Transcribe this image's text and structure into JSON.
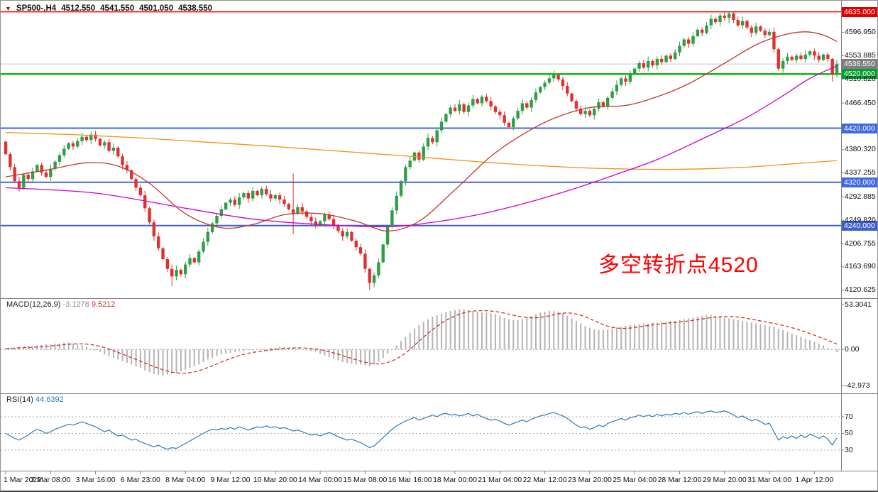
{
  "header": {
    "symbol": "SP500-,H4",
    "open": "4512.550",
    "high": "4541.550",
    "low": "4501.050",
    "close": "4538.550"
  },
  "annotation": {
    "text": "多空转折点4520",
    "color": "#FF0000"
  },
  "indicators": {
    "macd": {
      "name": "MACD(12,26,9)",
      "main_value": "-3.1278",
      "signal_value": "9.5212"
    },
    "rsi": {
      "name": "RSI(14)",
      "value": "44.6392"
    }
  },
  "chart_data": [
    {
      "type": "candlestick",
      "panel": "main",
      "title": "SP500-,H4",
      "ylim": [
        4115,
        4645
      ],
      "open_first": 4395,
      "up_color": "#2f9e44",
      "down_color": "#e03131",
      "closes": [
        4372,
        4348,
        4322,
        4310,
        4334,
        4326,
        4340,
        4352,
        4338,
        4330,
        4345,
        4358,
        4370,
        4382,
        4392,
        4386,
        4396,
        4404,
        4398,
        4408,
        4400,
        4388,
        4394,
        4378,
        4384,
        4368,
        4352,
        4342,
        4326,
        4310,
        4296,
        4272,
        4246,
        4220,
        4198,
        4178,
        4160,
        4146,
        4158,
        4150,
        4168,
        4180,
        4172,
        4192,
        4210,
        4228,
        4244,
        4258,
        4270,
        4282,
        4288,
        4278,
        4292,
        4300,
        4290,
        4304,
        4296,
        4308,
        4298,
        4290,
        4296,
        4288,
        4280,
        4270,
        4262,
        4274,
        4266,
        4256,
        4248,
        4240,
        4248,
        4260,
        4252,
        4240,
        4230,
        4220,
        4228,
        4212,
        4200,
        4188,
        4160,
        4134,
        4148,
        4172,
        4205,
        4238,
        4268,
        4295,
        4322,
        4348,
        4360,
        4375,
        4362,
        4386,
        4402,
        4394,
        4416,
        4432,
        4446,
        4458,
        4452,
        4464,
        4450,
        4462,
        4474,
        4466,
        4478,
        4470,
        4460,
        4450,
        4444,
        4430,
        4422,
        4438,
        4452,
        4466,
        4458,
        4472,
        4486,
        4496,
        4504,
        4512,
        4518,
        4510,
        4498,
        4484,
        4470,
        4456,
        4446,
        4452,
        4444,
        4456,
        4468,
        4460,
        4476,
        4488,
        4500,
        4512,
        4506,
        4520,
        4530,
        4540,
        4532,
        4544,
        4536,
        4548,
        4542,
        4554,
        4548,
        4560,
        4572,
        4584,
        4576,
        4590,
        4602,
        4596,
        4610,
        4622,
        4616,
        4628,
        4624,
        4632,
        4620,
        4610,
        4618,
        4606,
        4596,
        4608,
        4600,
        4592,
        4598,
        4566,
        4530,
        4544,
        4552,
        4546,
        4554,
        4548,
        4556,
        4562,
        4554,
        4546,
        4556,
        4548,
        4520,
        4538.55
      ],
      "spikes": {
        "37": [
          4168,
          4128
        ],
        "64": [
          4336,
          4224
        ],
        "81": [
          4162,
          4121
        ],
        "161": [
          4637,
          4614
        ],
        "184": [
          4550,
          4506
        ]
      },
      "y_ticks": [
        {
          "label": "4596.950",
          "value": 4596.95
        },
        {
          "label": "4553.885",
          "value": 4553.885
        },
        {
          "label": "4510.820",
          "value": 4510.82
        },
        {
          "label": "4466.450",
          "value": 4466.45
        },
        {
          "label": "4380.320",
          "value": 4380.32
        },
        {
          "label": "4337.255",
          "value": 4337.255
        },
        {
          "label": "4292.885",
          "value": 4292.885
        },
        {
          "label": "4249.820",
          "value": 4249.82
        },
        {
          "label": "4206.755",
          "value": 4206.755
        },
        {
          "label": "4163.690",
          "value": 4163.69
        },
        {
          "label": "4120.625",
          "value": 4120.625
        }
      ],
      "hlines": [
        {
          "price": 4635.0,
          "label": "4635.000",
          "color": "#ff0000",
          "box": "#e00000",
          "width": 1.4
        },
        {
          "price": 4538.55,
          "label": "4538.550",
          "color": "#c4c4c4",
          "box": "#7f7f7f",
          "width": 1
        },
        {
          "price": 4520.0,
          "label": "4520.000",
          "color": "#00b400",
          "box": "#00a12e",
          "width": 2.4
        },
        {
          "price": 4420.0,
          "label": "4420.000",
          "color": "#4169e1",
          "box": "#4169e1",
          "width": 2
        },
        {
          "price": 4320.0,
          "label": "4320.000",
          "color": "#4169e1",
          "box": "#4169e1",
          "width": 2
        },
        {
          "price": 4240.0,
          "label": "4240.000",
          "color": "#3f5fd0",
          "box": "#3f5fd0",
          "width": 2
        }
      ],
      "mas": [
        {
          "name": "ma-slow-orange",
          "color": "#f39114",
          "points": [
            [
              0,
              4412
            ],
            [
              15,
              4408
            ],
            [
              30,
              4402
            ],
            [
              45,
              4394
            ],
            [
              60,
              4386
            ],
            [
              75,
              4377
            ],
            [
              90,
              4368
            ],
            [
              105,
              4358
            ],
            [
              120,
              4350
            ],
            [
              135,
              4345
            ],
            [
              150,
              4344
            ],
            [
              165,
              4348
            ],
            [
              175,
              4354
            ],
            [
              185,
              4360
            ]
          ]
        },
        {
          "name": "ma-mid-magenta",
          "color": "#cc00cc",
          "points": [
            [
              0,
              4310
            ],
            [
              20,
              4300
            ],
            [
              40,
              4272
            ],
            [
              55,
              4252
            ],
            [
              70,
              4242
            ],
            [
              85,
              4238
            ],
            [
              95,
              4246
            ],
            [
              105,
              4260
            ],
            [
              115,
              4280
            ],
            [
              125,
              4304
            ],
            [
              135,
              4332
            ],
            [
              145,
              4362
            ],
            [
              155,
              4400
            ],
            [
              165,
              4440
            ],
            [
              173,
              4480
            ],
            [
              179,
              4512
            ],
            [
              185,
              4535
            ]
          ]
        },
        {
          "name": "ma-fast-red",
          "color": "#c0392b",
          "points": [
            [
              0,
              4330
            ],
            [
              10,
              4344
            ],
            [
              18,
              4356
            ],
            [
              25,
              4350
            ],
            [
              32,
              4318
            ],
            [
              40,
              4262
            ],
            [
              48,
              4236
            ],
            [
              55,
              4242
            ],
            [
              62,
              4260
            ],
            [
              70,
              4262
            ],
            [
              78,
              4248
            ],
            [
              85,
              4230
            ],
            [
              92,
              4248
            ],
            [
              100,
              4306
            ],
            [
              108,
              4368
            ],
            [
              115,
              4408
            ],
            [
              122,
              4438
            ],
            [
              130,
              4458
            ],
            [
              138,
              4462
            ],
            [
              145,
              4478
            ],
            [
              152,
              4502
            ],
            [
              160,
              4540
            ],
            [
              167,
              4574
            ],
            [
              173,
              4592
            ],
            [
              178,
              4598
            ],
            [
              182,
              4592
            ],
            [
              185,
              4580
            ]
          ]
        }
      ],
      "x_labels": [
        "1 Mar 2022",
        "2 Mar 08:00",
        "3 Mar 16:00",
        "6 Mar 23:00",
        "8 Mar 04:00",
        "9 Mar 12:00",
        "10 Mar 20:00",
        "14 Mar 00:00",
        "15 Mar 08:00",
        "16 Mar 16:00",
        "18 Mar 00:00",
        "21 Mar 04:00",
        "22 Mar 12:00",
        "23 Mar 20:00",
        "25 Mar 04:00",
        "28 Mar 12:00",
        "29 Mar 20:00",
        "31 Mar 04:00",
        "1 Apr 12:00"
      ]
    },
    {
      "type": "bar",
      "panel": "macd",
      "ylim": [
        -48,
        56
      ],
      "hist_color": "#b4b4b4",
      "signal_color": "#cc2222",
      "signal_period": 9,
      "ticks": [
        {
          "label": "53.3041",
          "value": 53.3041
        },
        {
          "label": "0.00",
          "value": 0
        },
        {
          "label": "-42.973",
          "value": -42.973
        }
      ],
      "hist": [
        1,
        2,
        2,
        3,
        3,
        4,
        4,
        5,
        5,
        6,
        6,
        7,
        7,
        8,
        8,
        7,
        6,
        5,
        3,
        1,
        -1,
        -3,
        -6,
        -8,
        -10,
        -12,
        -14,
        -16,
        -18,
        -20,
        -22,
        -25,
        -27,
        -29,
        -30,
        -31,
        -30,
        -29,
        -28,
        -26,
        -24,
        -22,
        -20,
        -18,
        -15,
        -12,
        -10,
        -8,
        -6,
        -5,
        -4,
        -3,
        -2,
        -2,
        -1,
        -1,
        0,
        1,
        1,
        2,
        2,
        3,
        3,
        2,
        2,
        1,
        0,
        -1,
        -2,
        -3,
        -5,
        -7,
        -9,
        -11,
        -13,
        -15,
        -16,
        -17,
        -18,
        -18,
        -19,
        -20,
        -18,
        -15,
        -10,
        -5,
        0,
        5,
        10,
        15,
        20,
        25,
        29,
        33,
        36,
        39,
        41,
        43,
        45,
        46,
        47,
        48,
        48,
        47,
        46,
        45,
        44,
        44,
        43,
        42,
        40,
        38,
        36,
        35,
        35,
        36,
        38,
        40,
        42,
        44,
        45,
        46,
        46,
        45,
        43,
        40,
        37,
        34,
        31,
        28,
        26,
        24,
        23,
        23,
        24,
        25,
        26,
        27,
        28,
        29,
        30,
        30,
        31,
        31,
        32,
        32,
        33,
        33,
        34,
        34,
        35,
        36,
        37,
        38,
        39,
        40,
        41,
        41,
        40,
        39,
        38,
        37,
        36,
        35,
        34,
        33,
        32,
        31,
        30,
        29,
        28,
        27,
        25,
        23,
        21,
        19,
        17,
        15,
        13,
        11,
        9,
        7,
        5,
        2,
        0,
        -3.13
      ]
    },
    {
      "type": "line",
      "panel": "rsi",
      "color": "#2a7ab5",
      "levels": [
        70,
        50,
        30
      ],
      "ticks": [
        {
          "label": "70",
          "value": 70
        },
        {
          "label": "50",
          "value": 50
        },
        {
          "label": "30",
          "value": 30
        }
      ],
      "values": [
        50,
        47,
        44,
        42,
        45,
        48,
        52,
        55,
        53,
        50,
        52,
        55,
        57,
        59,
        61,
        60,
        62,
        64,
        62,
        60,
        58,
        55,
        52,
        54,
        50,
        47,
        48,
        45,
        42,
        43,
        40,
        38,
        36,
        34,
        36,
        33,
        31,
        33,
        32,
        35,
        38,
        41,
        44,
        47,
        50,
        53,
        55,
        54,
        56,
        55,
        57,
        55,
        58,
        56,
        54,
        56,
        58,
        57,
        59,
        57,
        58,
        56,
        57,
        55,
        53,
        54,
        52,
        50,
        48,
        49,
        47,
        49,
        51,
        49,
        46,
        44,
        42,
        43,
        41,
        39,
        36,
        33,
        35,
        40,
        45,
        50,
        55,
        59,
        62,
        65,
        67,
        69,
        66,
        68,
        70,
        72,
        70,
        73,
        74,
        72,
        73,
        71,
        72,
        74,
        71,
        73,
        70,
        68,
        66,
        67,
        65,
        62,
        60,
        62,
        64,
        66,
        64,
        67,
        69,
        71,
        72,
        74,
        75,
        73,
        71,
        68,
        64,
        60,
        57,
        58,
        55,
        57,
        60,
        58,
        62,
        64,
        66,
        68,
        66,
        69,
        70,
        72,
        70,
        72,
        70,
        73,
        71,
        73,
        72,
        74,
        73,
        75,
        73,
        75,
        76,
        74,
        76,
        77,
        75,
        76,
        77,
        75,
        72,
        69,
        71,
        68,
        65,
        67,
        64,
        61,
        62,
        52,
        42,
        46,
        44,
        47,
        44,
        48,
        45,
        49,
        47,
        44,
        47,
        43,
        36,
        44.64
      ]
    }
  ]
}
